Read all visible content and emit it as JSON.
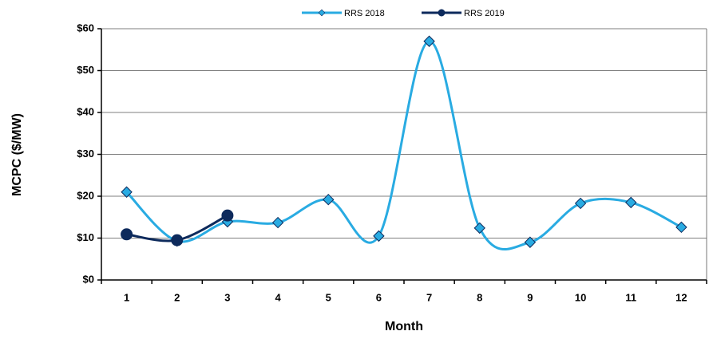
{
  "chart_data": {
    "type": "line",
    "x_label": "Month",
    "y_label": "MCPC ($/MW)",
    "categories": [
      "1",
      "2",
      "3",
      "4",
      "5",
      "6",
      "7",
      "8",
      "9",
      "10",
      "11",
      "12"
    ],
    "series": [
      {
        "name": "RRS 2018",
        "color": "#29abe2",
        "marker": "diamond",
        "values": [
          21,
          9.3,
          13.9,
          13.7,
          19.2,
          10.5,
          57,
          12.4,
          9,
          18.3,
          18.5,
          12.6
        ]
      },
      {
        "name": "RRS 2019",
        "color": "#0d2a5c",
        "marker": "circle",
        "values": [
          10.9,
          9.5,
          15.4,
          null,
          null,
          null,
          null,
          null,
          null,
          null,
          null,
          null
        ]
      }
    ],
    "ylim": [
      0,
      60
    ],
    "yticks": [
      {
        "value": 0,
        "label": "$0"
      },
      {
        "value": 10,
        "label": "$10"
      },
      {
        "value": 20,
        "label": "$20"
      },
      {
        "value": 30,
        "label": "$30"
      },
      {
        "value": 40,
        "label": "$40"
      },
      {
        "value": 50,
        "label": "$50"
      },
      {
        "value": 60,
        "label": "$60"
      }
    ],
    "grid": true,
    "legend": "top",
    "smooth": true
  }
}
